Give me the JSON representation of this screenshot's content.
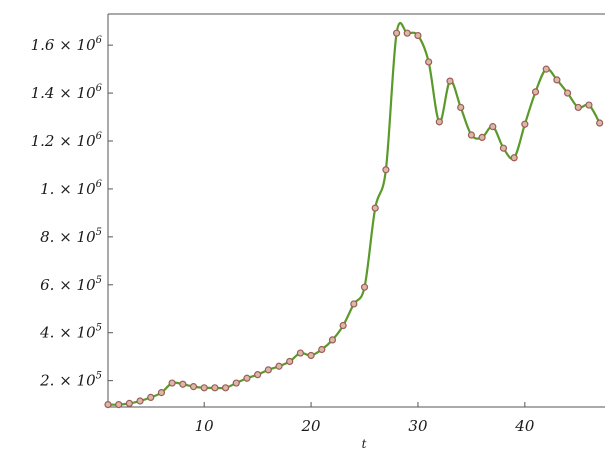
{
  "chart_data": {
    "type": "line",
    "title": "",
    "xlabel": "t",
    "ylabel": "",
    "xlim": [
      1,
      47.5
    ],
    "ylim": [
      90000,
      1730000
    ],
    "grid": false,
    "legend": "none",
    "x_ticks": [
      {
        "value": 10,
        "label": "10"
      },
      {
        "value": 20,
        "label": "20"
      },
      {
        "value": 30,
        "label": "30"
      },
      {
        "value": 40,
        "label": "40"
      }
    ],
    "y_ticks": [
      {
        "value": 200000,
        "mantissa": "2. × 10",
        "exp": "5"
      },
      {
        "value": 400000,
        "mantissa": "4. × 10",
        "exp": "5"
      },
      {
        "value": 600000,
        "mantissa": "6. × 10",
        "exp": "5"
      },
      {
        "value": 800000,
        "mantissa": "8. × 10",
        "exp": "5"
      },
      {
        "value": 1000000,
        "mantissa": "1. × 10",
        "exp": "6"
      },
      {
        "value": 1200000,
        "mantissa": "1.2 × 10",
        "exp": "6"
      },
      {
        "value": 1400000,
        "mantissa": "1.4 × 10",
        "exp": "6"
      },
      {
        "value": 1600000,
        "mantissa": "1.6 × 10",
        "exp": "6"
      }
    ],
    "line_color": "#5a9a2a",
    "marker_color": "#9c5d55",
    "series": [
      {
        "x": [
          1,
          2,
          3,
          4,
          5,
          6,
          7,
          8,
          9,
          10,
          11,
          12,
          13,
          14,
          15,
          16,
          17,
          18,
          19,
          20,
          21,
          22,
          23,
          24,
          25,
          26,
          27,
          28,
          29,
          30,
          31,
          32,
          33,
          34,
          35,
          36,
          37,
          38,
          39,
          40,
          41,
          42,
          43,
          44,
          45,
          46,
          47
        ],
        "y": [
          100000,
          100000,
          105000,
          115000,
          130000,
          150000,
          190000,
          185000,
          175000,
          170000,
          170000,
          170000,
          190000,
          210000,
          225000,
          245000,
          260000,
          280000,
          315000,
          305000,
          330000,
          370000,
          430000,
          520000,
          590000,
          920000,
          1080000,
          1650000,
          1650000,
          1640000,
          1530000,
          1280000,
          1450000,
          1340000,
          1225000,
          1215000,
          1260000,
          1170000,
          1130000,
          1270000,
          1405000,
          1500000,
          1455000,
          1400000,
          1340000,
          1350000,
          1275000
        ]
      }
    ]
  }
}
